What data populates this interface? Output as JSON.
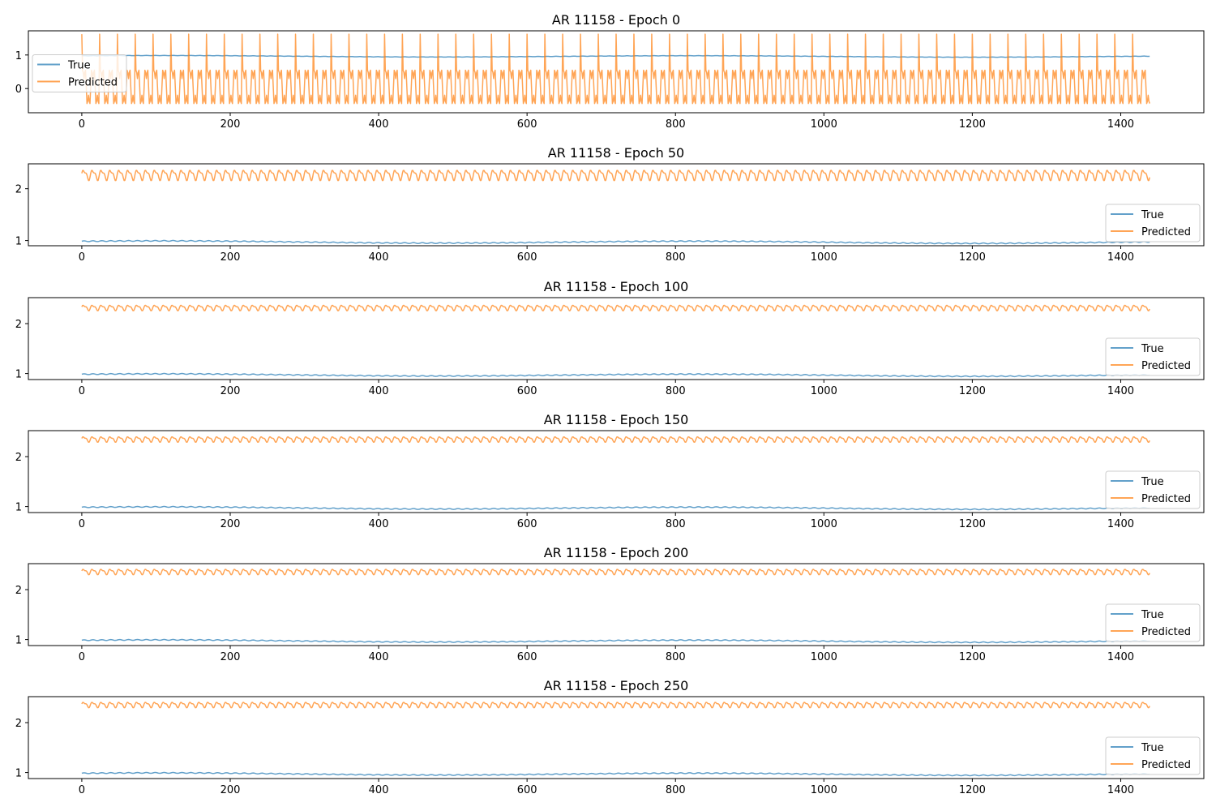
{
  "figure": {
    "colors": {
      "true": "#1f77b4",
      "predicted": "#ff7f0e",
      "axis": "#000000",
      "legend_border": "#cccccc"
    },
    "series_names": [
      "True",
      "Predicted"
    ],
    "line_alpha": 0.7
  },
  "chart_data": [
    {
      "type": "line",
      "title": "AR 11158 - Epoch 0",
      "xlabel": "",
      "ylabel": "",
      "xlim": [
        -72,
        1512
      ],
      "ylim": [
        -0.72,
        1.72
      ],
      "xticks": [
        0,
        200,
        400,
        600,
        800,
        1000,
        1200,
        1400
      ],
      "yticks": [
        0,
        1
      ],
      "legend_loc": "center-left",
      "n_points": 1440,
      "series": [
        {
          "name": "True",
          "pattern": "slow",
          "base": 0.965,
          "slow_amp": 0.02,
          "period": 12,
          "amp": 0.004
        },
        {
          "name": "Predicted",
          "pattern": "spike",
          "mean": 0.05,
          "min": -0.62,
          "spike_max": 1.62,
          "period": 12,
          "spike_every": 2
        }
      ]
    },
    {
      "type": "line",
      "title": "AR 11158 - Epoch 50",
      "xlabel": "",
      "ylabel": "",
      "xlim": [
        -72,
        1512
      ],
      "ylim": [
        0.9,
        2.48
      ],
      "xticks": [
        0,
        200,
        400,
        600,
        800,
        1000,
        1200,
        1400
      ],
      "yticks": [
        1,
        2
      ],
      "legend_loc": "lower-right",
      "n_points": 1440,
      "series": [
        {
          "name": "True",
          "pattern": "slow",
          "base": 0.975,
          "slow_amp": 0.02,
          "period": 12,
          "amp": 0.008
        },
        {
          "name": "Predicted",
          "pattern": "osc",
          "mean": 2.27,
          "amp": 0.11,
          "period": 12
        }
      ]
    },
    {
      "type": "line",
      "title": "AR 11158 - Epoch 100",
      "xlabel": "",
      "ylabel": "",
      "xlim": [
        -72,
        1512
      ],
      "ylim": [
        0.88,
        2.52
      ],
      "xticks": [
        0,
        200,
        400,
        600,
        800,
        1000,
        1200,
        1400
      ],
      "yticks": [
        1,
        2
      ],
      "legend_loc": "lower-right",
      "n_points": 1440,
      "series": [
        {
          "name": "True",
          "pattern": "slow",
          "base": 0.975,
          "slow_amp": 0.02,
          "period": 12,
          "amp": 0.008
        },
        {
          "name": "Predicted",
          "pattern": "osc",
          "mean": 2.32,
          "amp": 0.06,
          "period": 12
        }
      ]
    },
    {
      "type": "line",
      "title": "AR 11158 - Epoch 150",
      "xlabel": "",
      "ylabel": "",
      "xlim": [
        -72,
        1512
      ],
      "ylim": [
        0.88,
        2.52
      ],
      "xticks": [
        0,
        200,
        400,
        600,
        800,
        1000,
        1200,
        1400
      ],
      "yticks": [
        1,
        2
      ],
      "legend_loc": "lower-right",
      "n_points": 1440,
      "series": [
        {
          "name": "True",
          "pattern": "slow",
          "base": 0.975,
          "slow_amp": 0.02,
          "period": 12,
          "amp": 0.008
        },
        {
          "name": "Predicted",
          "pattern": "osc",
          "mean": 2.35,
          "amp": 0.06,
          "period": 12
        }
      ]
    },
    {
      "type": "line",
      "title": "AR 11158 - Epoch 200",
      "xlabel": "",
      "ylabel": "",
      "xlim": [
        -72,
        1512
      ],
      "ylim": [
        0.88,
        2.52
      ],
      "xticks": [
        0,
        200,
        400,
        600,
        800,
        1000,
        1200,
        1400
      ],
      "yticks": [
        1,
        2
      ],
      "legend_loc": "lower-right",
      "n_points": 1440,
      "series": [
        {
          "name": "True",
          "pattern": "slow",
          "base": 0.975,
          "slow_amp": 0.02,
          "period": 12,
          "amp": 0.008
        },
        {
          "name": "Predicted",
          "pattern": "osc",
          "mean": 2.36,
          "amp": 0.06,
          "period": 12
        }
      ]
    },
    {
      "type": "line",
      "title": "AR 11158 - Epoch 250",
      "xlabel": "",
      "ylabel": "",
      "xlim": [
        -72,
        1512
      ],
      "ylim": [
        0.88,
        2.52
      ],
      "xticks": [
        0,
        200,
        400,
        600,
        800,
        1000,
        1200,
        1400
      ],
      "yticks": [
        1,
        2
      ],
      "legend_loc": "lower-right",
      "n_points": 1440,
      "series": [
        {
          "name": "True",
          "pattern": "slow",
          "base": 0.975,
          "slow_amp": 0.02,
          "period": 12,
          "amp": 0.008
        },
        {
          "name": "Predicted",
          "pattern": "osc",
          "mean": 2.36,
          "amp": 0.06,
          "period": 12
        }
      ]
    }
  ]
}
